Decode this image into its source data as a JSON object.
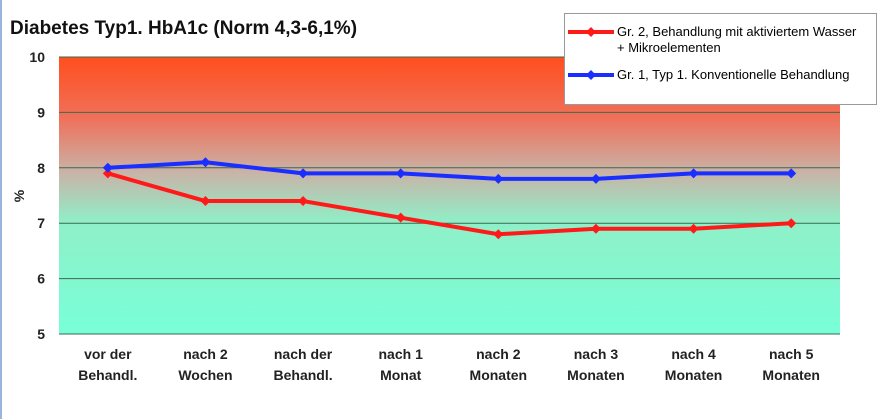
{
  "chart_data": {
    "type": "line",
    "title": "Diabetes Typ1. HbA1c (Norm 4,3-6,1%)",
    "y_label": "%",
    "categories": [
      "vor der Behandl.",
      "nach 2 Wochen",
      "nach der Behandl.",
      "nach 1 Monat",
      "nach 2 Monaten",
      "nach 3 Monaten",
      "nach 4 Monaten",
      "nach 5 Monaten"
    ],
    "series": [
      {
        "name": "Gr. 2, Behandlung mit aktiviertem Wasser + Mikroelementen",
        "color": "#ff1a1a",
        "values": [
          7.9,
          7.4,
          7.4,
          7.1,
          6.8,
          6.9,
          6.9,
          7.0
        ]
      },
      {
        "name": "Gr. 1, Typ 1. Konventionelle Behandlung",
        "color": "#1a2eff",
        "values": [
          8.0,
          8.1,
          7.9,
          7.9,
          7.8,
          7.8,
          7.9,
          7.9
        ]
      }
    ],
    "ylim": [
      5,
      10
    ],
    "yticks": [
      5,
      6,
      7,
      8,
      9,
      10
    ],
    "grid": true,
    "legend": "top-right"
  }
}
